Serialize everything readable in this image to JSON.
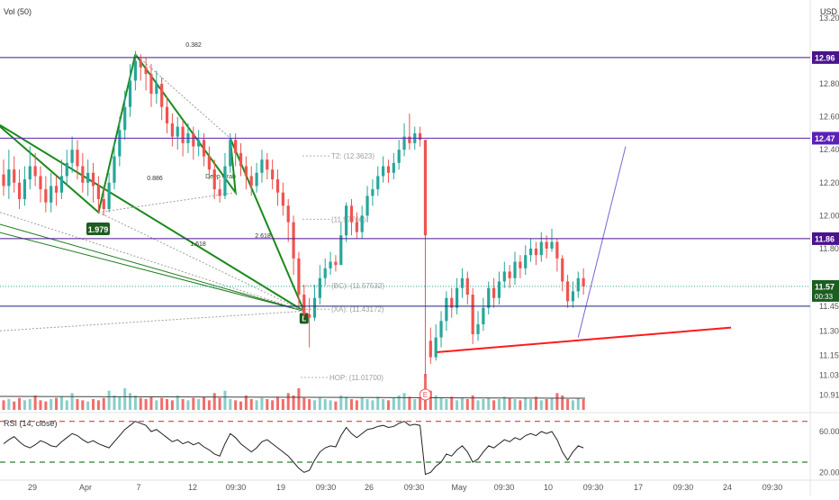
{
  "chart_data": [
    {
      "type": "candlestick",
      "pane": "price",
      "currency_label": "USD",
      "volume_indicator_label": "Vol (50)",
      "ylim": [
        10.82,
        13.2
      ],
      "y_ticks": [
        "13.20",
        "12.96",
        "12.80",
        "12.60",
        "12.40",
        "12.20",
        "12.00",
        "11.80",
        "11.57",
        "11.45",
        "11.30",
        "11.15",
        "11.03",
        "10.91"
      ],
      "x_ticks": [
        "29",
        "Apr",
        "7",
        "12",
        "09:30",
        "19",
        "09:30",
        "26",
        "09:30",
        "May",
        "09:30",
        "10",
        "09:30",
        "17",
        "09:30",
        "24",
        "09:30"
      ],
      "horizontal_levels": [
        {
          "value": 12.96,
          "label": "12.96",
          "color": "#4a148c"
        },
        {
          "value": 12.47,
          "label": "12.47",
          "color": "#5b21b6"
        },
        {
          "value": 11.86,
          "label": "11.86",
          "color": "#4a148c"
        },
        {
          "value": 11.45,
          "label": "",
          "color": "#1a237e"
        }
      ],
      "last_price": {
        "value": 11.57,
        "label": "11.57",
        "countdown": "00:33",
        "color": "#1b5e20"
      },
      "candles": [
        [
          12.25,
          12.18,
          12.34,
          12.12
        ],
        [
          12.18,
          12.28,
          12.4,
          12.1
        ],
        [
          12.28,
          12.2,
          12.36,
          12.14
        ],
        [
          12.2,
          12.1,
          12.28,
          12.04
        ],
        [
          12.1,
          12.22,
          12.3,
          12.06
        ],
        [
          12.22,
          12.3,
          12.42,
          12.16
        ],
        [
          12.3,
          12.24,
          12.38,
          12.18
        ],
        [
          12.24,
          12.16,
          12.3,
          12.08
        ],
        [
          12.16,
          12.08,
          12.24,
          12.02
        ],
        [
          12.08,
          12.18,
          12.26,
          12.02
        ],
        [
          12.18,
          12.14,
          12.24,
          12.06
        ],
        [
          12.14,
          12.24,
          12.34,
          12.1
        ],
        [
          12.24,
          12.32,
          12.4,
          12.18
        ],
        [
          12.32,
          12.4,
          12.48,
          12.26
        ],
        [
          12.4,
          12.3,
          12.46,
          12.22
        ],
        [
          12.3,
          12.2,
          12.38,
          12.14
        ],
        [
          12.2,
          12.26,
          12.34,
          12.12
        ],
        [
          12.26,
          12.18,
          12.32,
          12.08
        ],
        [
          12.18,
          12.1,
          12.24,
          12.02
        ],
        [
          12.1,
          12.04,
          12.18,
          12.0
        ],
        [
          12.04,
          12.2,
          12.26,
          12.02
        ],
        [
          12.2,
          12.36,
          12.44,
          12.16
        ],
        [
          12.36,
          12.52,
          12.6,
          12.3
        ],
        [
          12.52,
          12.66,
          12.76,
          12.46
        ],
        [
          12.66,
          12.82,
          12.92,
          12.6
        ],
        [
          12.82,
          12.94,
          13.0,
          12.76
        ],
        [
          12.94,
          12.9,
          12.98,
          12.82
        ],
        [
          12.9,
          12.86,
          12.96,
          12.76
        ],
        [
          12.86,
          12.74,
          12.92,
          12.66
        ],
        [
          12.74,
          12.8,
          12.88,
          12.68
        ],
        [
          12.8,
          12.66,
          12.84,
          12.58
        ],
        [
          12.66,
          12.56,
          12.72,
          12.5
        ],
        [
          12.56,
          12.48,
          12.62,
          12.42
        ],
        [
          12.48,
          12.54,
          12.6,
          12.4
        ],
        [
          12.54,
          12.44,
          12.58,
          12.36
        ],
        [
          12.44,
          12.5,
          12.56,
          12.38
        ],
        [
          12.5,
          12.42,
          12.54,
          12.34
        ],
        [
          12.42,
          12.46,
          12.52,
          12.36
        ],
        [
          12.46,
          12.36,
          12.5,
          12.3
        ],
        [
          12.36,
          12.28,
          12.42,
          12.22
        ],
        [
          12.28,
          12.16,
          12.34,
          12.1
        ],
        [
          12.16,
          12.12,
          12.22,
          12.08
        ],
        [
          12.12,
          12.3,
          12.38,
          12.1
        ],
        [
          12.3,
          12.46,
          12.5,
          12.26
        ],
        [
          12.46,
          12.38,
          12.5,
          12.3
        ],
        [
          12.38,
          12.3,
          12.44,
          12.24
        ],
        [
          12.3,
          12.24,
          12.36,
          12.16
        ],
        [
          12.24,
          12.18,
          12.3,
          12.12
        ],
        [
          12.18,
          12.26,
          12.32,
          12.14
        ],
        [
          12.26,
          12.34,
          12.4,
          12.2
        ],
        [
          12.34,
          12.28,
          12.38,
          12.22
        ],
        [
          12.28,
          12.22,
          12.34,
          12.16
        ],
        [
          12.22,
          12.14,
          12.28,
          12.06
        ],
        [
          12.14,
          12.06,
          12.2,
          12.0
        ],
        [
          12.06,
          11.96,
          12.1,
          11.84
        ],
        [
          11.96,
          11.74,
          12.0,
          11.64
        ],
        [
          11.74,
          11.52,
          11.78,
          11.44
        ],
        [
          11.52,
          11.4,
          11.58,
          11.38
        ],
        [
          11.4,
          11.38,
          11.5,
          11.2
        ],
        [
          11.38,
          11.5,
          11.58,
          11.36
        ],
        [
          11.5,
          11.62,
          11.7,
          11.46
        ],
        [
          11.62,
          11.68,
          11.74,
          11.58
        ],
        [
          11.68,
          11.72,
          11.78,
          11.64
        ],
        [
          11.72,
          11.7,
          11.76,
          11.66
        ],
        [
          11.7,
          11.88,
          11.96,
          11.86
        ],
        [
          11.88,
          12.06,
          12.08,
          11.84
        ],
        [
          12.06,
          11.96,
          12.1,
          11.88
        ],
        [
          11.96,
          11.9,
          12.02,
          11.86
        ],
        [
          11.9,
          12.0,
          12.06,
          11.86
        ],
        [
          12.0,
          12.12,
          12.18,
          11.96
        ],
        [
          12.12,
          12.16,
          12.22,
          12.06
        ],
        [
          12.16,
          12.24,
          12.3,
          12.12
        ],
        [
          12.24,
          12.3,
          12.36,
          12.2
        ],
        [
          12.3,
          12.26,
          12.34,
          12.2
        ],
        [
          12.26,
          12.32,
          12.38,
          12.22
        ],
        [
          12.32,
          12.4,
          12.46,
          12.28
        ],
        [
          12.4,
          12.48,
          12.56,
          12.36
        ],
        [
          12.48,
          12.44,
          12.62,
          12.4
        ],
        [
          12.44,
          12.5,
          12.54,
          12.4
        ],
        [
          12.5,
          12.46,
          12.54,
          12.42
        ],
        [
          12.46,
          11.88,
          11.9,
          11.02
        ],
        [
          11.24,
          11.14,
          11.32,
          11.1
        ],
        [
          11.14,
          11.26,
          11.34,
          11.12
        ],
        [
          11.26,
          11.36,
          11.42,
          11.2
        ],
        [
          11.36,
          11.5,
          11.54,
          11.3
        ],
        [
          11.5,
          11.44,
          11.56,
          11.38
        ],
        [
          11.44,
          11.56,
          11.62,
          11.4
        ],
        [
          11.56,
          11.62,
          11.68,
          11.5
        ],
        [
          11.62,
          11.52,
          11.66,
          11.46
        ],
        [
          11.52,
          11.28,
          11.56,
          11.22
        ],
        [
          11.28,
          11.34,
          11.42,
          11.24
        ],
        [
          11.34,
          11.44,
          11.5,
          11.3
        ],
        [
          11.44,
          11.56,
          11.6,
          11.4
        ],
        [
          11.56,
          11.5,
          11.62,
          11.44
        ],
        [
          11.5,
          11.6,
          11.66,
          11.46
        ],
        [
          11.6,
          11.66,
          11.72,
          11.56
        ],
        [
          11.66,
          11.62,
          11.7,
          11.56
        ],
        [
          11.62,
          11.72,
          11.78,
          11.58
        ],
        [
          11.72,
          11.68,
          11.76,
          11.62
        ],
        [
          11.68,
          11.76,
          11.82,
          11.64
        ],
        [
          11.76,
          11.8,
          11.86,
          11.72
        ],
        [
          11.8,
          11.76,
          11.84,
          11.7
        ],
        [
          11.76,
          11.84,
          11.9,
          11.72
        ],
        [
          11.84,
          11.8,
          11.88,
          11.74
        ],
        [
          11.8,
          11.84,
          11.92,
          11.78
        ],
        [
          11.84,
          11.74,
          11.86,
          11.66
        ],
        [
          11.74,
          11.6,
          11.76,
          11.54
        ],
        [
          11.6,
          11.48,
          11.64,
          11.44
        ],
        [
          11.48,
          11.54,
          11.6,
          11.44
        ],
        [
          11.54,
          11.62,
          11.66,
          11.5
        ],
        [
          11.62,
          11.57,
          11.68,
          11.52
        ]
      ],
      "volume": [
        8,
        9,
        7,
        10,
        8,
        9,
        12,
        8,
        7,
        9,
        10,
        11,
        8,
        14,
        9,
        8,
        7,
        9,
        8,
        10,
        16,
        12,
        11,
        18,
        14,
        12,
        10,
        9,
        11,
        8,
        10,
        9,
        8,
        12,
        9,
        8,
        10,
        9,
        11,
        8,
        14,
        10,
        16,
        9,
        8,
        7,
        12,
        9,
        8,
        10,
        9,
        8,
        11,
        9,
        14,
        12,
        18,
        10,
        9,
        8,
        10,
        9,
        8,
        7,
        12,
        11,
        9,
        8,
        10,
        9,
        8,
        11,
        9,
        8,
        10,
        12,
        14,
        11,
        9,
        10,
        30,
        16,
        12,
        10,
        9,
        11,
        8,
        10,
        9,
        12,
        8,
        9,
        10,
        8,
        9,
        11,
        10,
        9,
        8,
        10,
        9,
        11,
        8,
        9,
        10,
        14,
        12,
        9,
        8,
        10,
        9
      ],
      "harmonic_pattern": {
        "name": "Deep Crab",
        "ratios": [
          "0.382",
          "0.886",
          "1.618",
          "2.618",
          "1.979"
        ],
        "marker": "L",
        "points": [
          [
            25,
            12.98
          ],
          [
            18,
            12.02
          ],
          [
            43,
            12.47
          ],
          [
            45,
            12.14
          ],
          [
            57,
            11.42
          ]
        ]
      },
      "target_labels": [
        {
          "text": "T2: (12.3623)",
          "value": 12.3623
        },
        {
          "text": "(11.97766)",
          "value": 11.97766
        },
        {
          "text": "(BC): (11.57532)",
          "value": 11.57532
        },
        {
          "text": "(XA): (11.43172)",
          "value": 11.43172
        },
        {
          "text": "HOP: (11.01700)",
          "value": 11.017
        }
      ],
      "trend_lines": [
        {
          "color": "#1b7a1b",
          "from": [
            -1,
            11.95
          ],
          "to": [
            57,
            11.42
          ],
          "width": 1
        },
        {
          "color": "#1b7a1b",
          "from": [
            -1,
            11.9
          ],
          "to": [
            57,
            11.42
          ],
          "width": 1
        },
        {
          "color": "#ff1a1a",
          "from": [
            82,
            11.17
          ],
          "to": [
            138,
            11.32
          ],
          "width": 2
        },
        {
          "color": "#7b61d6",
          "from": [
            109,
            11.26
          ],
          "to": [
            118,
            12.42
          ],
          "width": 1
        }
      ],
      "earnings_marker": "E"
    },
    {
      "type": "line",
      "pane": "rsi",
      "title": "RSI (14, close)",
      "ylim": [
        15,
        75
      ],
      "y_ticks": [
        "60.00",
        "20.00"
      ],
      "levels": [
        {
          "value": 70,
          "color": "#e53935"
        },
        {
          "value": 30,
          "color": "#2e7d32"
        }
      ],
      "values": [
        48,
        52,
        55,
        50,
        46,
        44,
        47,
        51,
        49,
        46,
        45,
        50,
        54,
        58,
        56,
        52,
        49,
        51,
        48,
        46,
        44,
        50,
        56,
        62,
        66,
        70,
        68,
        66,
        60,
        62,
        58,
        54,
        50,
        52,
        48,
        50,
        47,
        49,
        45,
        42,
        38,
        36,
        48,
        58,
        54,
        48,
        44,
        40,
        44,
        50,
        52,
        48,
        44,
        40,
        36,
        30,
        24,
        20,
        22,
        32,
        40,
        44,
        46,
        45,
        56,
        64,
        58,
        54,
        58,
        62,
        63,
        65,
        66,
        64,
        65,
        68,
        70,
        66,
        67,
        66,
        18,
        20,
        26,
        30,
        38,
        36,
        42,
        46,
        40,
        30,
        33,
        40,
        46,
        44,
        48,
        52,
        50,
        54,
        52,
        56,
        58,
        56,
        60,
        58,
        60,
        52,
        40,
        32,
        40,
        46,
        44
      ]
    }
  ]
}
